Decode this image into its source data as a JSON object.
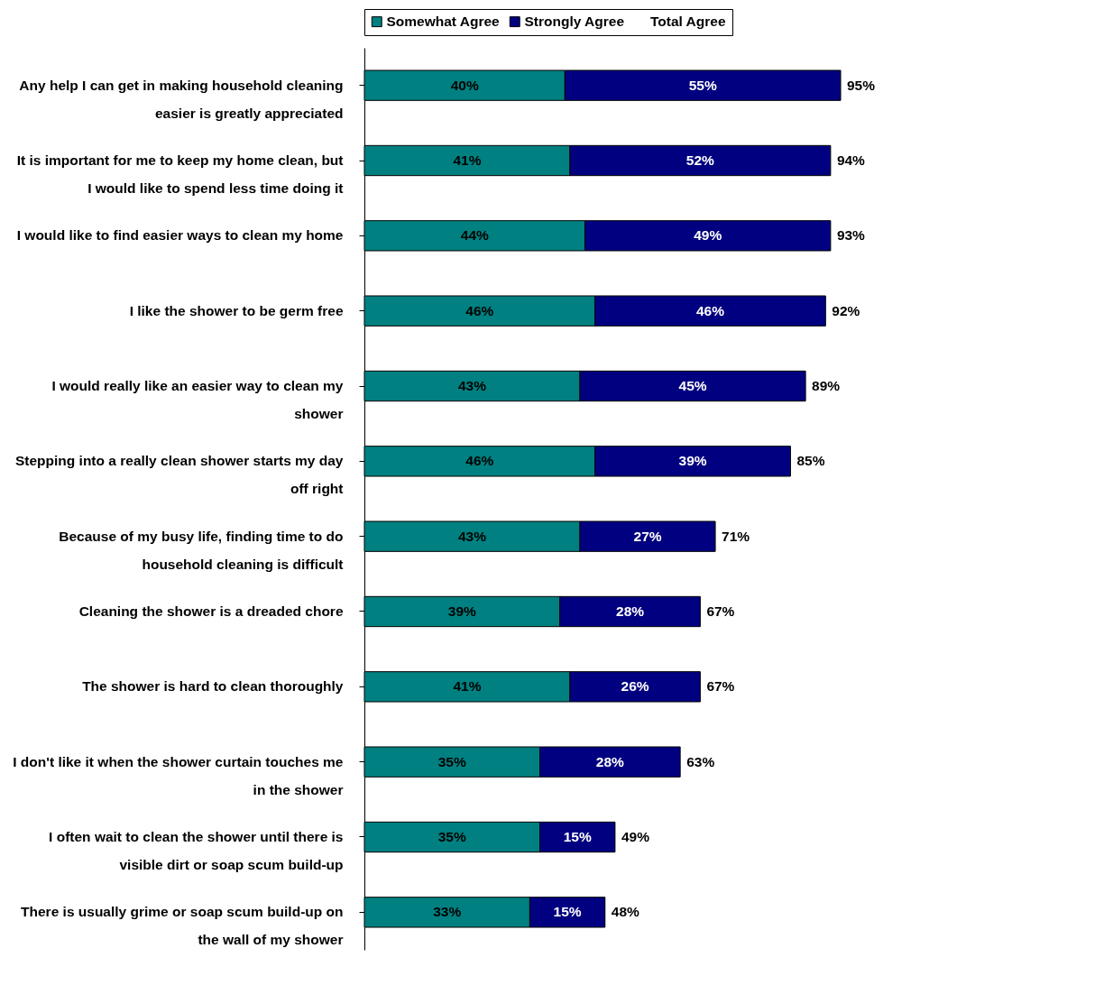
{
  "chart_data": {
    "type": "bar",
    "orientation": "horizontal",
    "stacked": true,
    "legend": "top",
    "legend_title": "Total Agree",
    "tick_labels": "y",
    "categories": [
      "Any help I can get in making household cleaning easier is greatly appreciated",
      "It is important for me to keep my home clean, but I would like to spend less time doing it",
      "I would like to find easier ways to clean my home",
      "I like the shower to be germ free",
      "I would really like an easier way to clean my shower",
      "Stepping into a really clean shower starts my day off right",
      "Because of my busy life, finding time to do household cleaning is difficult",
      "Cleaning the shower is a dreaded chore",
      "The shower is hard to clean thoroughly",
      "I don't like it when the shower curtain touches me in the shower",
      "I often wait to clean the shower until there is visible dirt or soap scum build-up",
      "There is usually grime or soap scum build-up on the wall of my shower"
    ],
    "series": [
      {
        "name": "Somewhat Agree",
        "color": "#008080",
        "values": [
          40,
          41,
          44,
          46,
          43,
          46,
          43,
          39,
          41,
          35,
          35,
          33
        ],
        "value_labels": [
          "40%",
          "41%",
          "44%",
          "46%",
          "43%",
          "46%",
          "43%",
          "39%",
          "41%",
          "35%",
          "35%",
          "33%"
        ]
      },
      {
        "name": "Strongly Agree",
        "color": "#000080",
        "values": [
          55,
          52,
          49,
          46,
          45,
          39,
          27,
          28,
          26,
          28,
          15,
          15
        ],
        "value_labels": [
          "55%",
          "52%",
          "49%",
          "46%",
          "45%",
          "39%",
          "27%",
          "28%",
          "26%",
          "28%",
          "15%",
          "15%"
        ]
      }
    ],
    "totals": [
      "95%",
      "94%",
      "93%",
      "92%",
      "89%",
      "85%",
      "71%",
      "67%",
      "67%",
      "63%",
      "49%",
      "48%"
    ]
  }
}
